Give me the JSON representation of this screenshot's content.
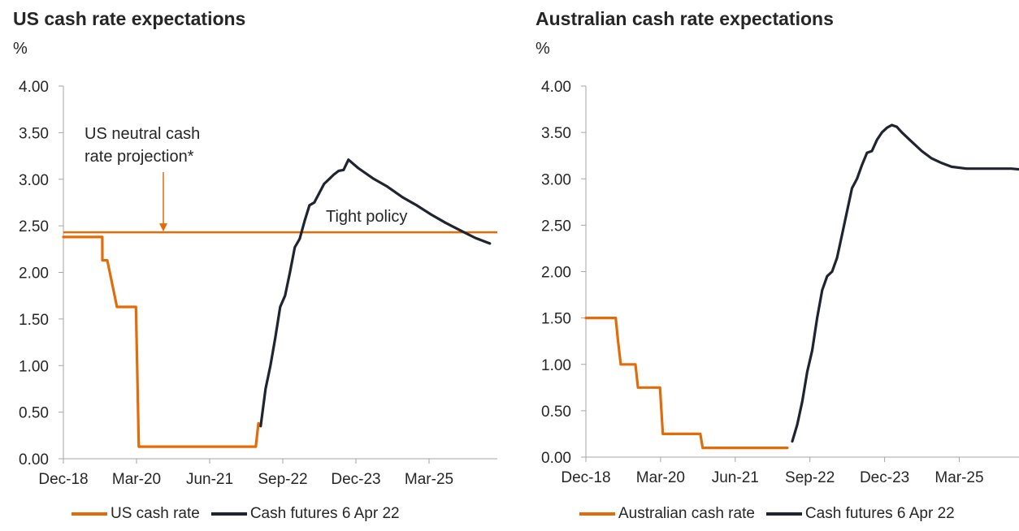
{
  "colors": {
    "orange": "#E36C0A",
    "dark": "#1F2430",
    "axis": "#A6A6A6"
  },
  "chart_data": [
    {
      "type": "line",
      "title": "US cash rate expectations",
      "ylabel": "%",
      "ylim": [
        0,
        4
      ],
      "yticks": [
        "0.00",
        "0.50",
        "1.00",
        "1.50",
        "2.00",
        "2.50",
        "3.00",
        "3.50",
        "4.00"
      ],
      "xlim": [
        "2018-12",
        "2026-05"
      ],
      "xticks": [
        {
          "label": "Dec-18",
          "date": "2018-12"
        },
        {
          "label": "Mar-20",
          "date": "2020-03"
        },
        {
          "label": "Jun-21",
          "date": "2021-06"
        },
        {
          "label": "Sep-22",
          "date": "2022-09"
        },
        {
          "label": "Dec-23",
          "date": "2023-12"
        },
        {
          "label": "Mar-25",
          "date": "2025-03"
        }
      ],
      "reference_line": {
        "value": 2.43
      },
      "annotations": [
        {
          "text": "US neutral cash",
          "text2": "rate projection*"
        },
        {
          "text": "Tight policy"
        }
      ],
      "series": [
        {
          "name": "US cash rate",
          "color": "#E36C0A",
          "points": [
            [
              "2018-12-01",
              2.38
            ],
            [
              "2019-07-31",
              2.38
            ],
            [
              "2019-08-01",
              2.13
            ],
            [
              "2019-09-01",
              2.13
            ],
            [
              "2019-10-01",
              1.88
            ],
            [
              "2019-10-31",
              1.63
            ],
            [
              "2020-02-28",
              1.63
            ],
            [
              "2020-03-15",
              0.13
            ],
            [
              "2022-03-15",
              0.13
            ],
            [
              "2022-04-01",
              0.38
            ]
          ]
        },
        {
          "name": "Cash futures 6 Apr 22",
          "color": "#1F2430",
          "points": [
            [
              "2022-04-15",
              0.35
            ],
            [
              "2022-05-15",
              0.75
            ],
            [
              "2022-06-15",
              1.0
            ],
            [
              "2022-07-15",
              1.3
            ],
            [
              "2022-08-15",
              1.63
            ],
            [
              "2022-09-15",
              1.75
            ],
            [
              "2022-10-15",
              2.0
            ],
            [
              "2022-11-15",
              2.27
            ],
            [
              "2022-12-15",
              2.36
            ],
            [
              "2023-01-15",
              2.55
            ],
            [
              "2023-02-15",
              2.72
            ],
            [
              "2023-03-15",
              2.75
            ],
            [
              "2023-05-15",
              2.95
            ],
            [
              "2023-06-15",
              3.0
            ],
            [
              "2023-07-15",
              3.05
            ],
            [
              "2023-08-15",
              3.09
            ],
            [
              "2023-09-15",
              3.1
            ],
            [
              "2023-10-15",
              3.21
            ],
            [
              "2023-12-15",
              3.12
            ],
            [
              "2024-03-15",
              3.01
            ],
            [
              "2024-06-15",
              2.92
            ],
            [
              "2024-09-15",
              2.81
            ],
            [
              "2024-12-15",
              2.72
            ],
            [
              "2025-03-15",
              2.62
            ],
            [
              "2025-06-15",
              2.53
            ],
            [
              "2025-09-15",
              2.45
            ],
            [
              "2025-12-15",
              2.37
            ],
            [
              "2026-03-15",
              2.31
            ]
          ]
        }
      ]
    },
    {
      "type": "line",
      "title": "Australian cash rate expectations",
      "ylabel": "%",
      "ylim": [
        0,
        4
      ],
      "yticks": [
        "0.00",
        "0.50",
        "1.00",
        "1.50",
        "2.00",
        "2.50",
        "3.00",
        "3.50",
        "4.00"
      ],
      "xlim": [
        "2018-12",
        "2026-03"
      ],
      "xticks": [
        {
          "label": "Dec-18",
          "date": "2018-12"
        },
        {
          "label": "Mar-20",
          "date": "2020-03"
        },
        {
          "label": "Jun-21",
          "date": "2021-06"
        },
        {
          "label": "Sep-22",
          "date": "2022-09"
        },
        {
          "label": "Dec-23",
          "date": "2023-12"
        },
        {
          "label": "Mar-25",
          "date": "2025-03"
        }
      ],
      "series": [
        {
          "name": "Australian cash rate",
          "color": "#E36C0A",
          "points": [
            [
              "2018-12-01",
              1.5
            ],
            [
              "2019-05-31",
              1.5
            ],
            [
              "2019-06-15",
              1.25
            ],
            [
              "2019-07-01",
              1.0
            ],
            [
              "2019-09-30",
              1.0
            ],
            [
              "2019-10-15",
              0.75
            ],
            [
              "2020-02-28",
              0.75
            ],
            [
              "2020-03-15",
              0.25
            ],
            [
              "2020-10-31",
              0.25
            ],
            [
              "2020-11-15",
              0.1
            ],
            [
              "2022-04-15",
              0.1
            ]
          ]
        },
        {
          "name": "Cash futures 6 Apr 22",
          "color": "#1F2430",
          "points": [
            [
              "2022-05-15",
              0.17
            ],
            [
              "2022-06-15",
              0.35
            ],
            [
              "2022-07-15",
              0.6
            ],
            [
              "2022-08-15",
              0.92
            ],
            [
              "2022-09-15",
              1.15
            ],
            [
              "2022-10-15",
              1.5
            ],
            [
              "2022-11-15",
              1.8
            ],
            [
              "2022-12-15",
              1.95
            ],
            [
              "2023-01-15",
              2.0
            ],
            [
              "2023-02-15",
              2.15
            ],
            [
              "2023-03-15",
              2.4
            ],
            [
              "2023-04-15",
              2.65
            ],
            [
              "2023-05-15",
              2.9
            ],
            [
              "2023-06-15",
              3.0
            ],
            [
              "2023-07-15",
              3.15
            ],
            [
              "2023-08-15",
              3.28
            ],
            [
              "2023-09-15",
              3.3
            ],
            [
              "2023-10-15",
              3.42
            ],
            [
              "2023-11-15",
              3.5
            ],
            [
              "2023-12-15",
              3.55
            ],
            [
              "2024-01-15",
              3.58
            ],
            [
              "2024-02-15",
              3.56
            ],
            [
              "2024-03-15",
              3.5
            ],
            [
              "2024-05-15",
              3.4
            ],
            [
              "2024-07-15",
              3.3
            ],
            [
              "2024-09-15",
              3.22
            ],
            [
              "2024-11-15",
              3.17
            ],
            [
              "2025-01-15",
              3.13
            ],
            [
              "2025-04-15",
              3.11
            ],
            [
              "2025-09-15",
              3.11
            ],
            [
              "2026-01-15",
              3.11
            ],
            [
              "2026-03-15",
              3.1
            ]
          ]
        }
      ]
    }
  ]
}
